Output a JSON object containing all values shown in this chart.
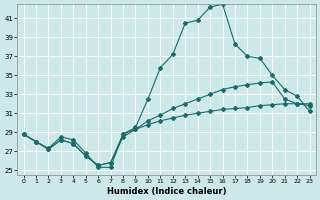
{
  "xlabel": "Humidex (Indice chaleur)",
  "bg_color": "#cce8e8",
  "grid_color": "#ffffff",
  "line_color": "#1a6b6b",
  "xlim": [
    -0.5,
    23.5
  ],
  "ylim": [
    24.5,
    42.5
  ],
  "yticks": [
    25,
    27,
    29,
    31,
    33,
    35,
    37,
    39,
    41
  ],
  "xticks": [
    0,
    1,
    2,
    3,
    4,
    5,
    6,
    7,
    8,
    9,
    10,
    11,
    12,
    13,
    14,
    15,
    16,
    17,
    18,
    19,
    20,
    21,
    22,
    23
  ],
  "series1_x": [
    0,
    1,
    2,
    3,
    4,
    5,
    6,
    7,
    8,
    9,
    10,
    11,
    12,
    13,
    14,
    15,
    16,
    17,
    18,
    19,
    20,
    21,
    22,
    23
  ],
  "series1_y": [
    28.8,
    28.0,
    27.3,
    28.5,
    28.2,
    26.8,
    25.3,
    25.3,
    28.8,
    29.5,
    32.5,
    35.8,
    37.2,
    40.5,
    40.8,
    42.2,
    42.5,
    38.3,
    37.0,
    36.8,
    35.0,
    33.5,
    32.8,
    31.2
  ],
  "series2_x": [
    0,
    1,
    2,
    3,
    4,
    5,
    6,
    7,
    8,
    9,
    10,
    11,
    12,
    13,
    14,
    15,
    16,
    17,
    18,
    19,
    20,
    21,
    22,
    23
  ],
  "series2_y": [
    28.8,
    28.0,
    27.2,
    28.2,
    27.8,
    26.5,
    25.5,
    25.8,
    28.5,
    29.3,
    30.2,
    30.8,
    31.5,
    32.0,
    32.5,
    33.0,
    33.5,
    33.8,
    34.0,
    34.2,
    34.3,
    32.5,
    32.0,
    31.8
  ],
  "series3_x": [
    0,
    1,
    2,
    3,
    4,
    5,
    6,
    7,
    8,
    9,
    10,
    11,
    12,
    13,
    14,
    15,
    16,
    17,
    18,
    19,
    20,
    21,
    22,
    23
  ],
  "series3_y": [
    28.8,
    28.0,
    27.2,
    28.2,
    27.8,
    26.5,
    25.5,
    25.8,
    28.8,
    29.3,
    29.8,
    30.2,
    30.5,
    30.8,
    31.0,
    31.2,
    31.4,
    31.5,
    31.6,
    31.8,
    31.9,
    32.0,
    32.0,
    32.0
  ]
}
